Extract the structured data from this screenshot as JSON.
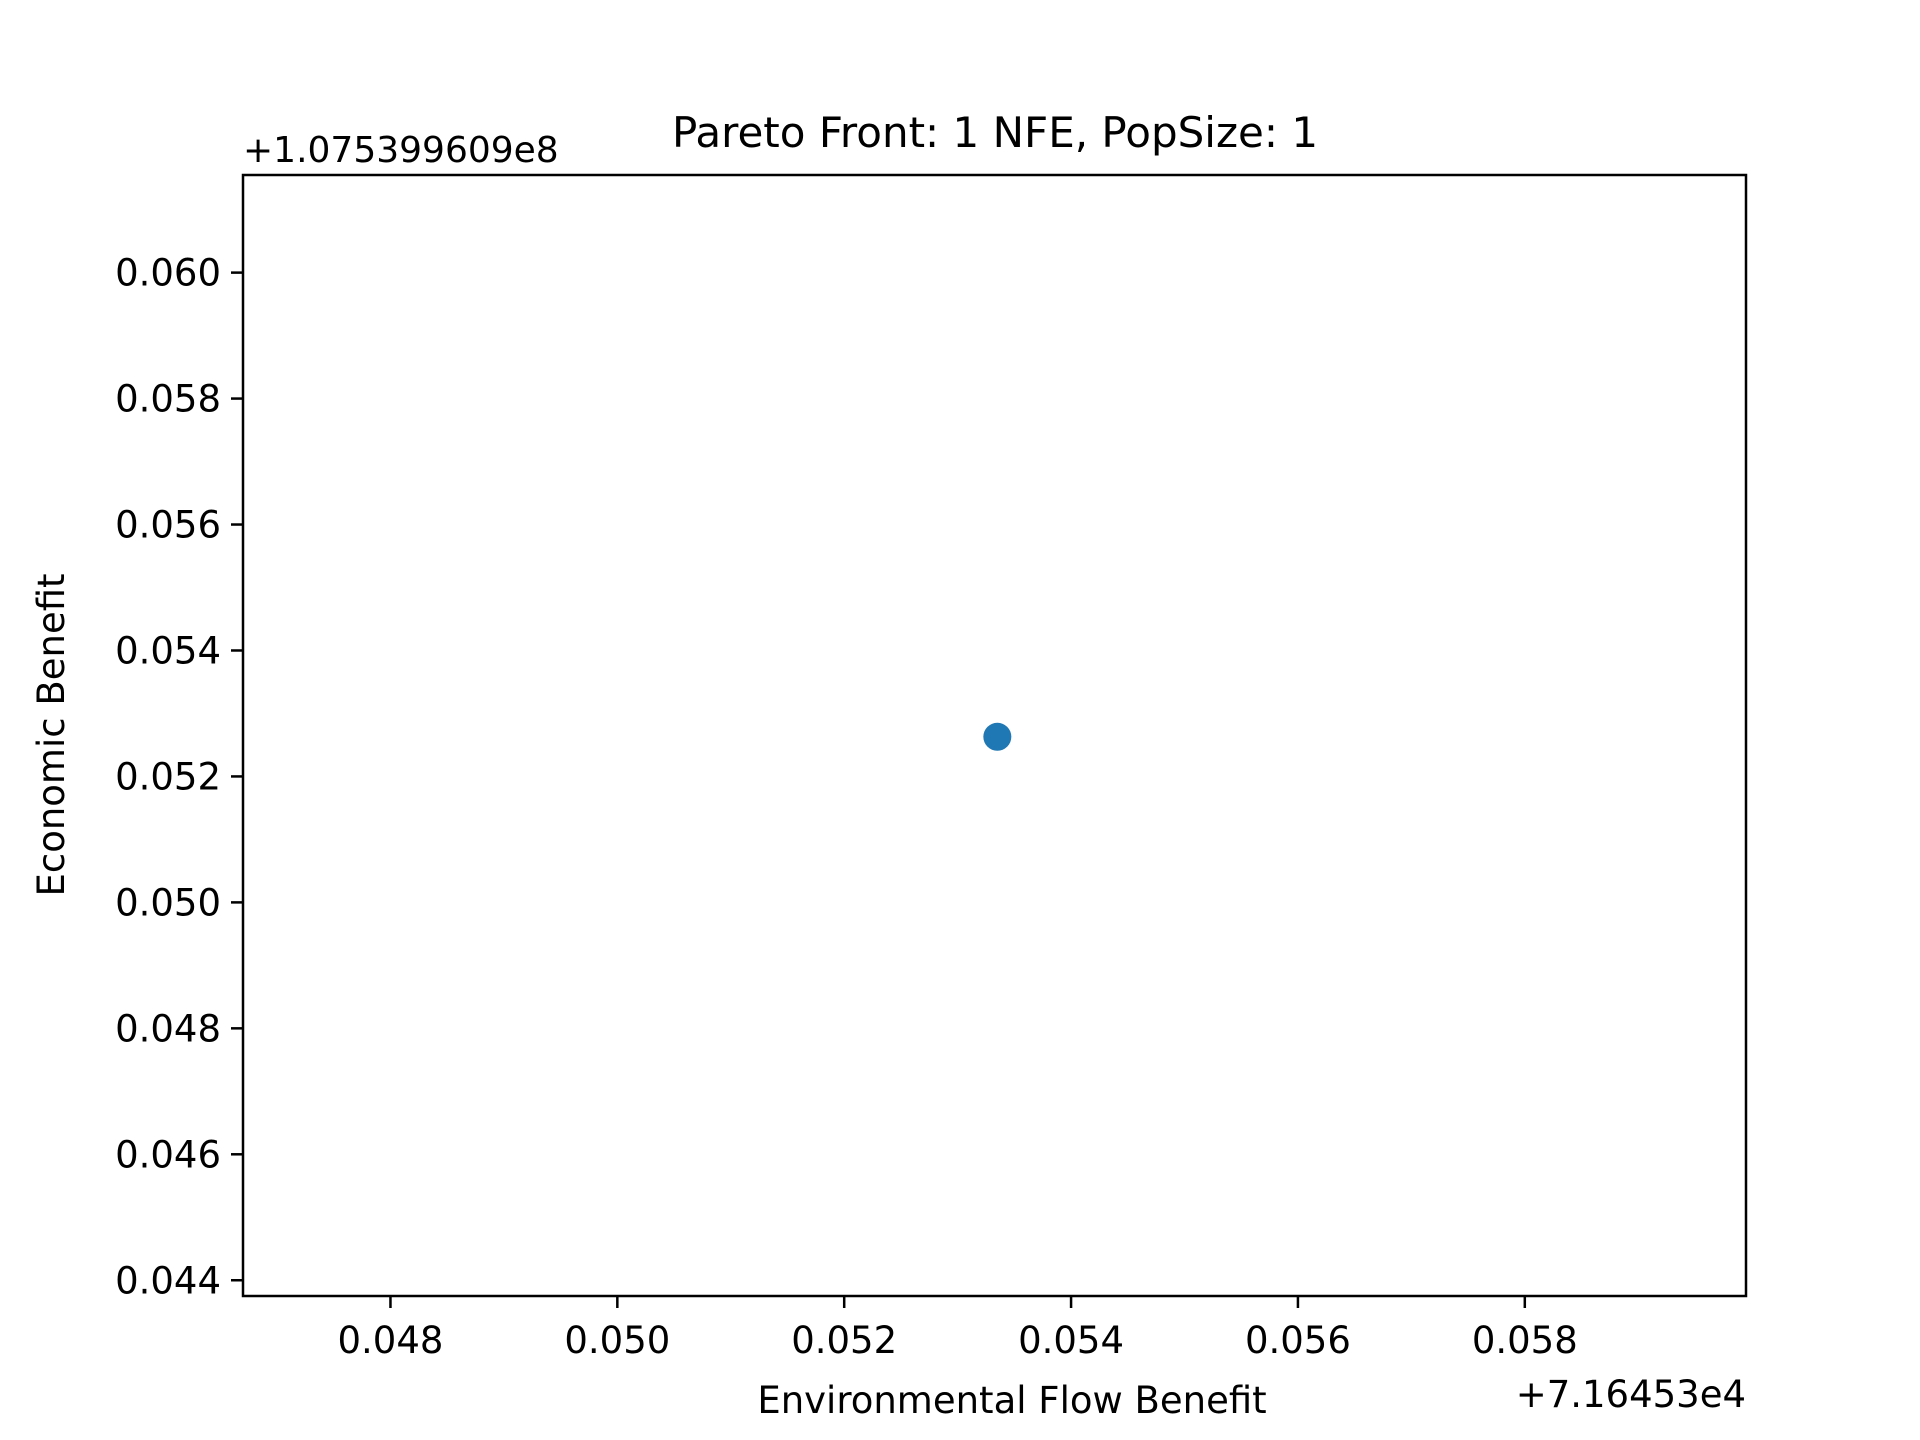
{
  "chart_data": {
    "type": "scatter",
    "title": "Pareto Front: 1 NFE, PopSize: 1",
    "xlabel": "Environmental Flow Benefit",
    "ylabel": "Economic Benefit",
    "x_offset_label": "+7.16453e4",
    "y_offset_label": "+1.075399609e8",
    "xlim": [
      0.0467,
      0.05995
    ],
    "ylim": [
      0.04375,
      0.06155
    ],
    "x_ticks": [
      0.048,
      0.05,
      0.052,
      0.054,
      0.056,
      0.058
    ],
    "x_tick_labels": [
      "0.048",
      "0.050",
      "0.052",
      "0.054",
      "0.056",
      "0.058"
    ],
    "y_ticks": [
      0.044,
      0.046,
      0.048,
      0.05,
      0.052,
      0.054,
      0.056,
      0.058,
      0.06
    ],
    "y_tick_labels": [
      "0.044",
      "0.046",
      "0.048",
      "0.050",
      "0.052",
      "0.054",
      "0.056",
      "0.058",
      "0.060"
    ],
    "grid": false,
    "series": [
      {
        "color": "#1f77b4",
        "points": [
          {
            "x": 0.05335,
            "y": 0.05263
          }
        ]
      }
    ]
  }
}
